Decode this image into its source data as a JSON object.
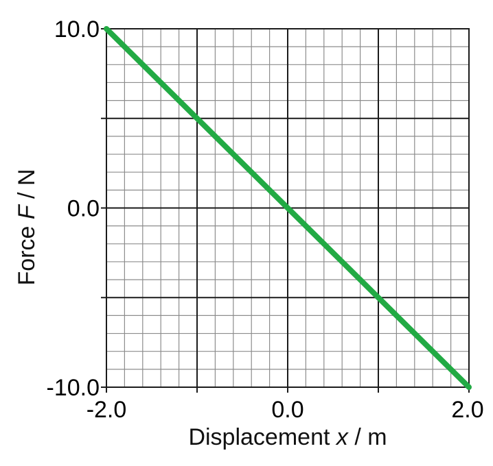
{
  "chart_data": {
    "type": "line",
    "title": "",
    "xlabel": {
      "prefix": "Displacement ",
      "variable": "x",
      "suffix": " / m"
    },
    "ylabel": {
      "prefix": "Force ",
      "variable": "F",
      "suffix": " / N"
    },
    "xlim": [
      -2.0,
      2.0
    ],
    "ylim": [
      -10.0,
      10.0
    ],
    "x_tick_labels": [
      "-2.0",
      "0.0",
      "2.0"
    ],
    "x_tick_values": [
      -2.0,
      0.0,
      2.0
    ],
    "y_tick_labels": [
      "10.0",
      "0.0",
      "-10.0"
    ],
    "y_tick_values": [
      10.0,
      0.0,
      -10.0
    ],
    "major_x_step": 1.0,
    "major_y_step": 5.0,
    "minor_x_step": 0.2,
    "minor_y_step": 1.0,
    "grid": true,
    "colors": {
      "line": "#22aa44",
      "major_grid": "#1a1a1a",
      "minor_grid": "#8c8c8c",
      "ylabel": "#111111"
    },
    "series": [
      {
        "x": [
          -2.0,
          -1.0,
          0.0,
          1.0,
          2.0
        ],
        "y": [
          10.0,
          5.0,
          0.0,
          -5.0,
          -10.0
        ]
      }
    ]
  }
}
